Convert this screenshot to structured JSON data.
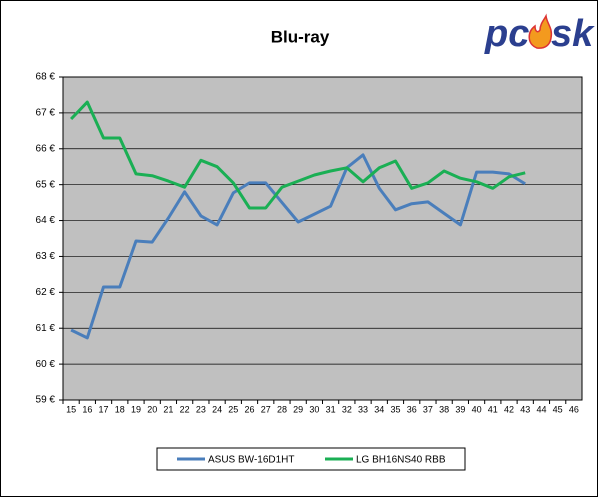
{
  "chart_data": {
    "type": "line",
    "title": "Blu-ray",
    "logo": [
      "pc",
      "sk"
    ],
    "categories": [
      "15",
      "16",
      "17",
      "18",
      "19",
      "20",
      "21",
      "22",
      "23",
      "24",
      "25",
      "26",
      "27",
      "28",
      "29",
      "30",
      "31",
      "32",
      "33",
      "34",
      "35",
      "36",
      "37",
      "38",
      "39",
      "40",
      "41",
      "42",
      "43",
      "44",
      "45",
      "46"
    ],
    "series": [
      {
        "name": "ASUS BW-16D1HT",
        "color": "#4a7ebb",
        "values": [
          60.95,
          60.73,
          62.15,
          62.15,
          63.43,
          63.4,
          64.07,
          64.8,
          64.13,
          63.88,
          64.77,
          65.05,
          65.05,
          64.5,
          63.96,
          64.18,
          64.4,
          65.47,
          65.83,
          64.9,
          64.3,
          64.47,
          64.52,
          64.2,
          63.88,
          65.35,
          65.35,
          65.3,
          65.02,
          null,
          null,
          null
        ]
      },
      {
        "name": "LG BH16NS40 RBB",
        "color": "#1aaf54",
        "values": [
          66.83,
          67.3,
          66.3,
          66.3,
          65.3,
          65.25,
          65.1,
          64.93,
          65.68,
          65.5,
          65.05,
          64.35,
          64.35,
          64.93,
          65.1,
          65.27,
          65.38,
          65.47,
          65.08,
          65.47,
          65.66,
          64.9,
          65.05,
          65.38,
          65.18,
          65.08,
          64.9,
          65.22,
          65.33,
          null,
          null,
          null
        ]
      }
    ],
    "ylim": [
      59,
      68
    ],
    "yticks": [
      {
        "value": 59,
        "label": "59 €"
      },
      {
        "value": 60,
        "label": "60 €"
      },
      {
        "value": 61,
        "label": "61 €"
      },
      {
        "value": 62,
        "label": "62 €"
      },
      {
        "value": 63,
        "label": "63 €"
      },
      {
        "value": 64,
        "label": "64 €"
      },
      {
        "value": 65,
        "label": "65 €"
      },
      {
        "value": 66,
        "label": "66 €"
      },
      {
        "value": 67,
        "label": "67 €"
      },
      {
        "value": 68,
        "label": "68 €"
      }
    ],
    "grid": true,
    "plot_background": "#c0c0c0",
    "legend": "bottom"
  }
}
